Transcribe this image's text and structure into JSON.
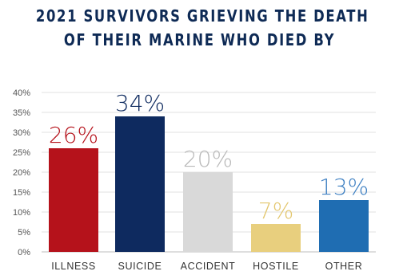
{
  "title": {
    "line1": "2021 SURVIVORS GRIEVING THE DEATH",
    "line2": "OF THEIR MARINE WHO DIED BY"
  },
  "chart_data": {
    "type": "bar",
    "categories": [
      "ILLNESS",
      "SUICIDE",
      "ACCIDENT",
      "HOSTILE",
      "OTHER"
    ],
    "values": [
      26,
      34,
      20,
      7,
      13
    ],
    "data_labels": [
      "26%",
      "34%",
      "20%",
      "7%",
      "13%"
    ],
    "colors": [
      "#b5121b",
      "#0e2a5f",
      "#d9d9d9",
      "#e8cf7e",
      "#1f6db2"
    ],
    "label_colors": [
      "#b5121b",
      "#0e2a5f",
      "#b9b9b9",
      "#e3c66c",
      "#3d7fc2"
    ],
    "ylim": [
      0,
      40
    ],
    "yticks": [
      "0%",
      "5%",
      "10%",
      "15%",
      "20%",
      "25%",
      "30%",
      "35%",
      "40%"
    ],
    "ytick_values": [
      0,
      5,
      10,
      15,
      20,
      25,
      30,
      35,
      40
    ],
    "grid": true,
    "xlabel": "",
    "ylabel": ""
  }
}
